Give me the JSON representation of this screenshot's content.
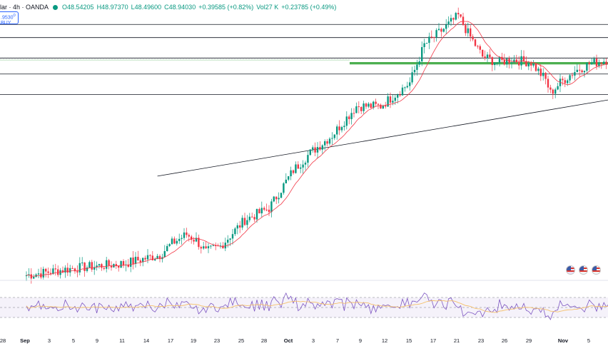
{
  "header": {
    "symbol": "lar · 4h · OANDA",
    "o": "O48.54205",
    "h": "H48.97370",
    "l": "L48.49600",
    "c": "C48.94030",
    "chg": "+0.39585 (+0.82%)",
    "vol": "Vol27 K",
    "vol_chg": "+0.23785 (+0.49%)"
  },
  "buy_box": {
    "price": ".9530",
    "sup": "0",
    "label": "BUY"
  },
  "colors": {
    "up": "#089981",
    "down": "#f23645",
    "ma": "#f23645",
    "rsi": "#7e57c2",
    "rsi_ma": "#f5c16c",
    "zone": "#4caf50"
  },
  "x_ticks": [
    "28",
    "Sep",
    "3",
    "5",
    "9",
    "11",
    "14",
    "17",
    "19",
    "23",
    "25",
    "28",
    "Oct",
    "3",
    "7",
    "9",
    "12",
    "15",
    "17",
    "21",
    "23",
    "26",
    "29",
    "Nov",
    "5"
  ],
  "icons": [
    "event-icon",
    "us-flag-icon",
    "us-flag-icon"
  ],
  "chart_data": {
    "type": "candlestick",
    "price_range": [
      42.0,
      51.0
    ],
    "horizontal_levels": [
      50.7,
      50.25,
      49.55,
      49.0,
      48.3
    ],
    "dotted_level": 49.53,
    "green_zone": [
      49.33,
      49.41
    ],
    "trendline": {
      "from_bar": 54,
      "from_price": 45.5,
      "to_bar": 246,
      "to_price": 48.2
    },
    "ma_window": 10,
    "bars": 251,
    "rsi": {
      "range": [
        0,
        100
      ],
      "levels": [
        70,
        50,
        30
      ]
    }
  }
}
